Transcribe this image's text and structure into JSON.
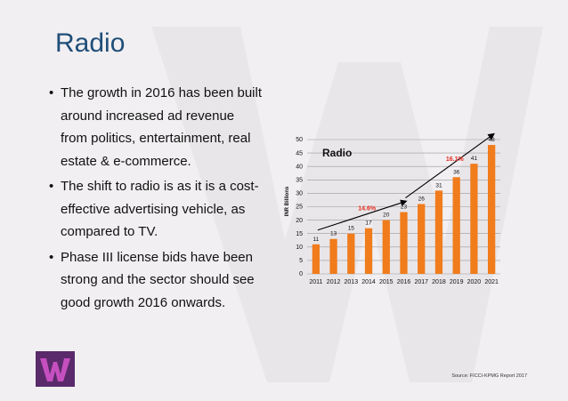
{
  "slide": {
    "title": "Radio",
    "bullets": [
      "The growth in 2016 has been built around increased ad revenue from politics, entertainment, real estate & e-commerce.",
      "The shift to radio is as it is a cost-effective advertising vehicle, as compared to TV.",
      "Phase III license bids have been strong and the sector should see good growth 2016 onwards."
    ],
    "source": "Source: FICCI-KPMG Report 2017"
  },
  "colors": {
    "bar": "#f07c1c",
    "title": "#1f4e79",
    "cagr": "#e52b1f",
    "arrow": "#000000",
    "background": "#f1eff1"
  },
  "chart_data": {
    "type": "bar",
    "title": "Radio",
    "ylabel": "INR Billions",
    "xlabel": "",
    "categories": [
      "2011",
      "2012",
      "2013",
      "2014",
      "2015",
      "2016",
      "2017",
      "2018",
      "2019",
      "2020",
      "2021"
    ],
    "values": [
      11,
      13,
      15,
      17,
      20,
      23,
      26,
      31,
      36,
      41,
      48
    ],
    "ylim": [
      0,
      50
    ],
    "yticks": [
      0,
      5,
      10,
      15,
      20,
      25,
      30,
      35,
      40,
      45,
      50
    ],
    "grid": true,
    "legend": "none",
    "annotations": [
      {
        "text": "14.6%",
        "from": "2011",
        "to": "2016"
      },
      {
        "text": "16.1%",
        "from": "2016",
        "to": "2021"
      }
    ]
  }
}
